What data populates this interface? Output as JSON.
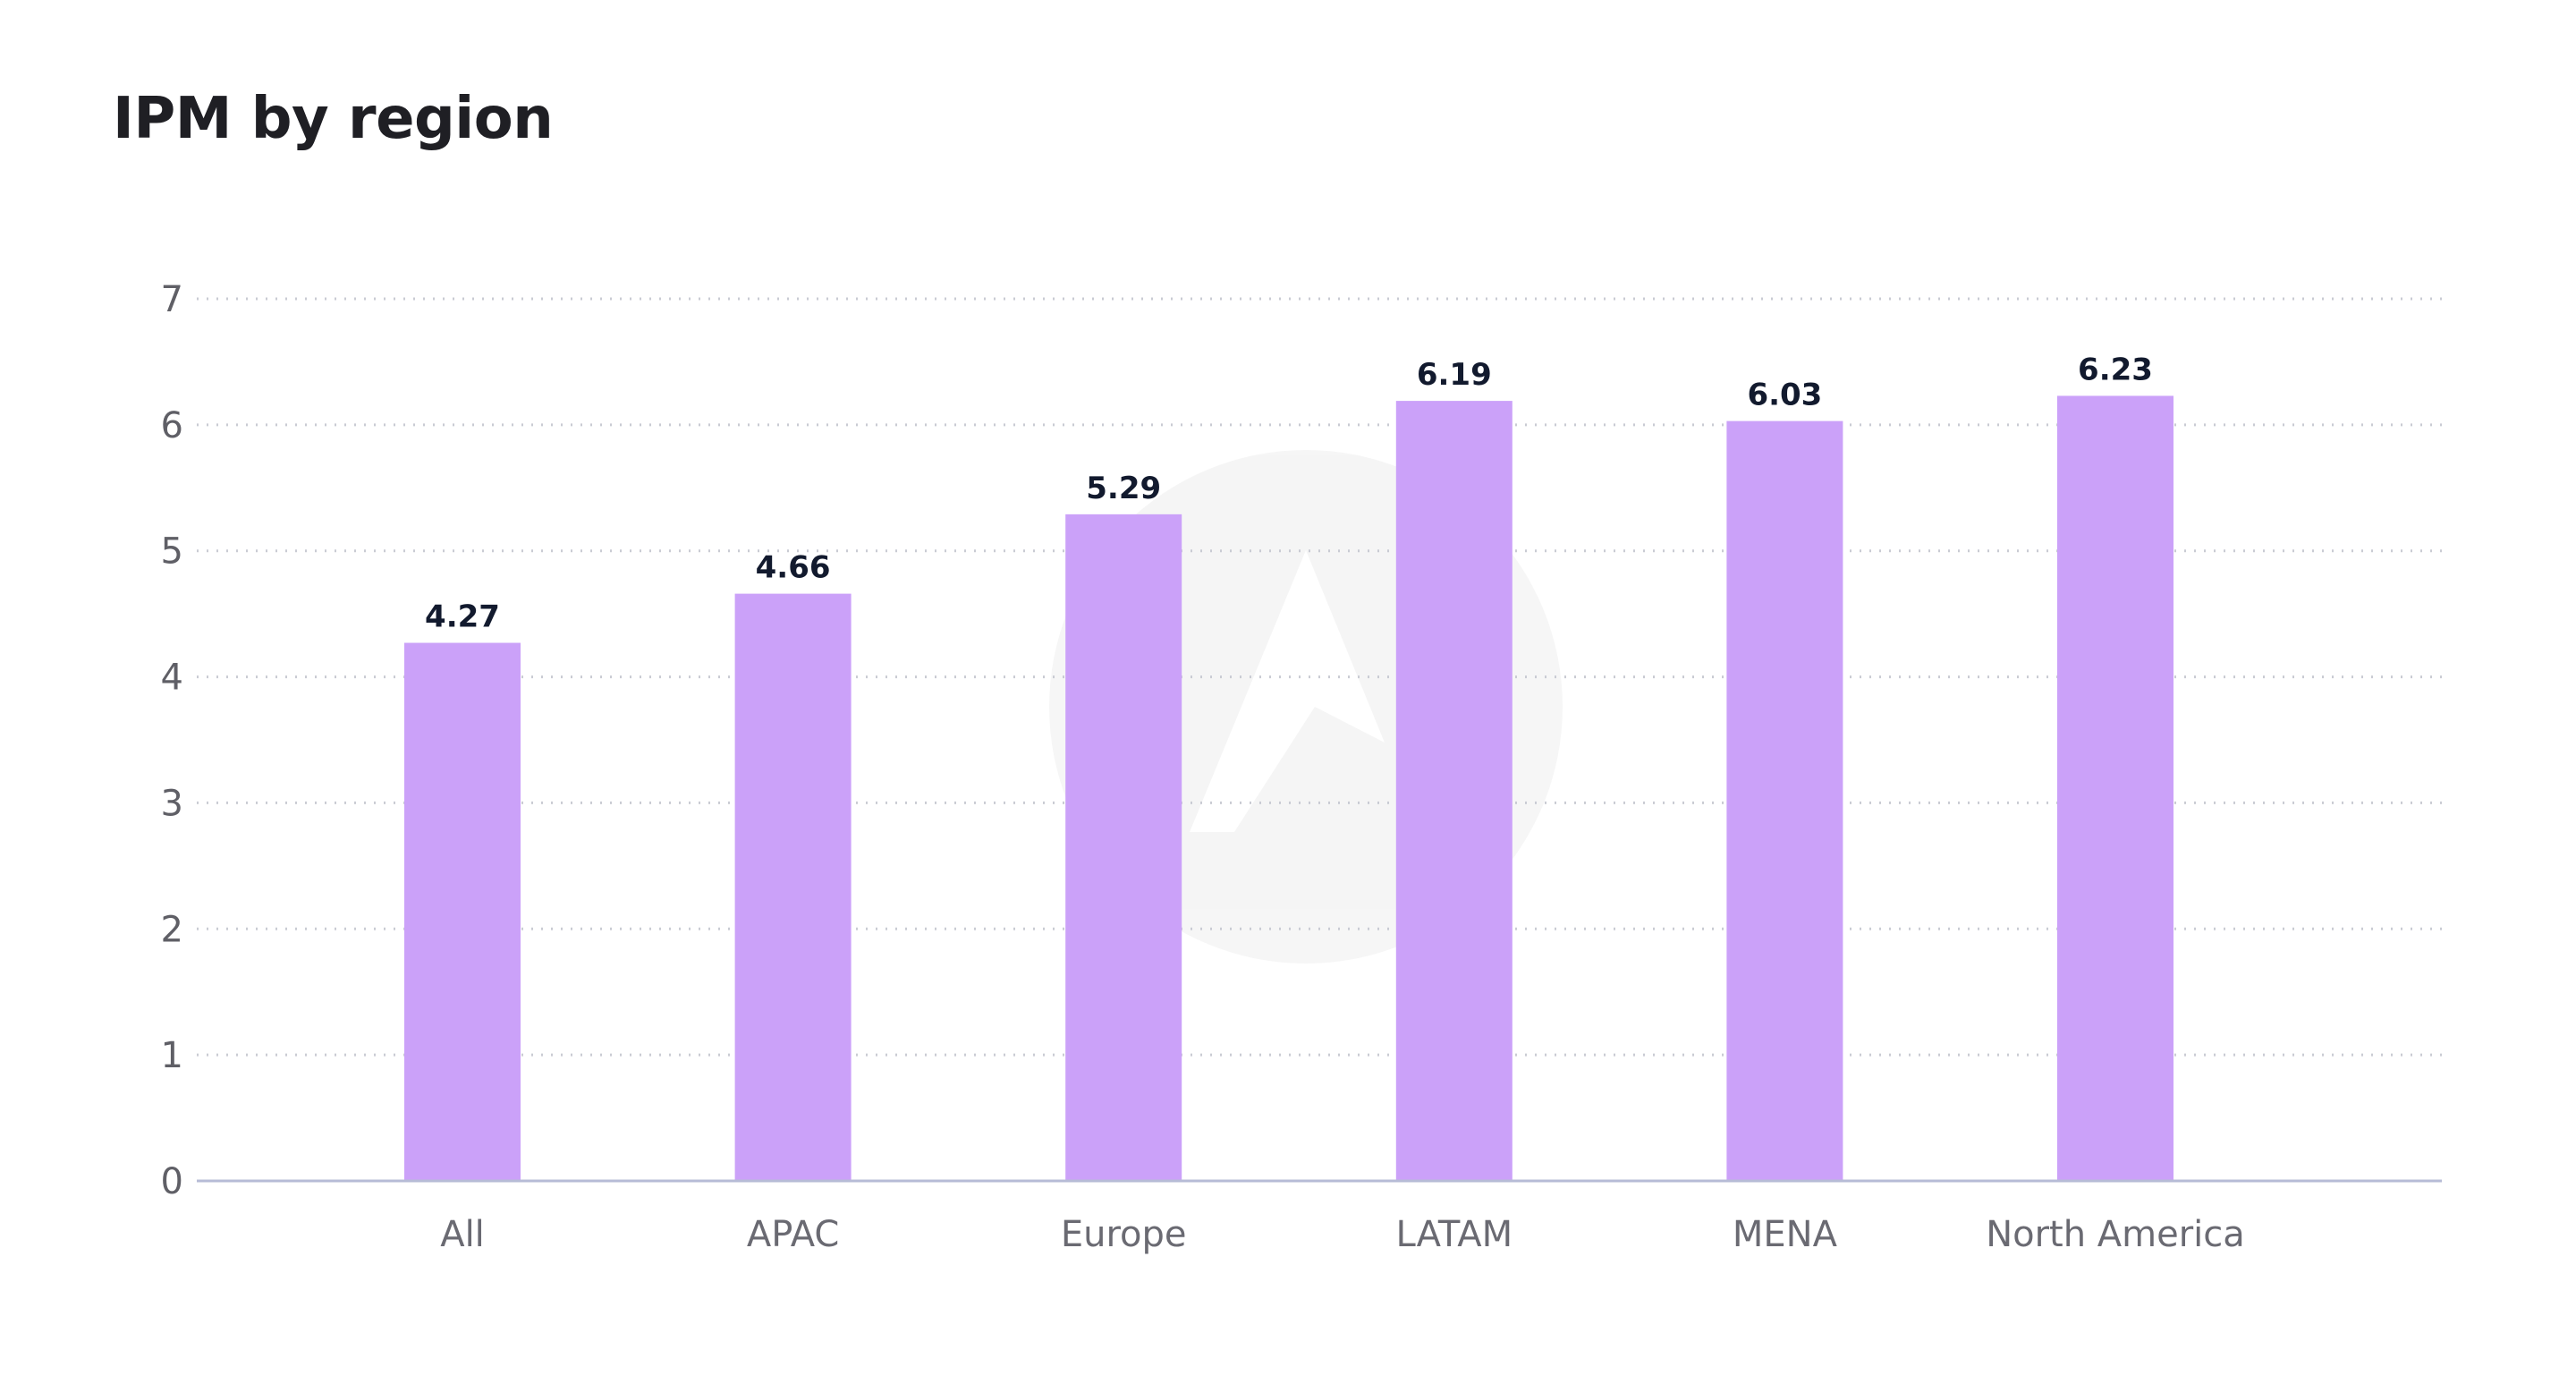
{
  "chart_data": {
    "type": "bar",
    "title": "IPM by region",
    "categories": [
      "All",
      "APAC",
      "Europe",
      "LATAM",
      "MENA",
      "North America"
    ],
    "values": [
      4.27,
      4.66,
      5.29,
      6.19,
      6.03,
      6.23
    ],
    "data_labels": [
      "4.27",
      "4.66",
      "5.29",
      "6.19",
      "6.03",
      "6.23"
    ],
    "xlabel": "",
    "ylabel": "",
    "ylim": [
      0,
      7
    ],
    "yticks": [
      0,
      1,
      2,
      3,
      4,
      5,
      6,
      7
    ],
    "grid": true,
    "bar_color": "#cba1f9",
    "axis_color": "#b7bcd6",
    "grid_color": "#c9cbd3",
    "watermark_icon": "brand-logo-watermark"
  }
}
